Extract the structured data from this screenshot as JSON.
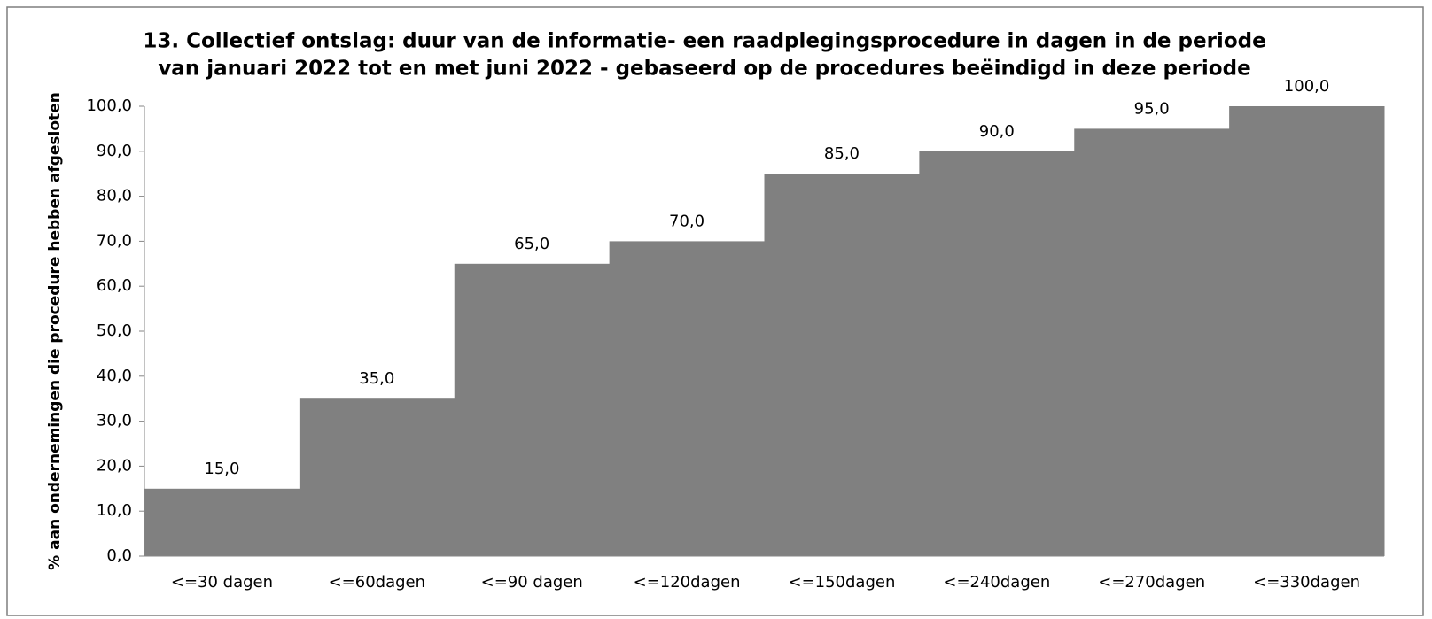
{
  "chart_data": {
    "type": "bar",
    "title": [
      "13. Collectief ontslag: duur van de informatie- een raadplegingsprocedure in dagen in de periode",
      "van januari 2022 tot en met juni 2022 - gebaseerd op de procedures beëindigd in deze periode"
    ],
    "y_label": "% aan ondernemingen die procedure hebben afgesloten",
    "categories": [
      "<=30 dagen",
      "<=60dagen",
      "<=90 dagen",
      "<=120dagen",
      "<=150dagen",
      "<=240dagen",
      "<=270dagen",
      "<=330dagen"
    ],
    "values": [
      15,
      35,
      65,
      70,
      85,
      90,
      95,
      100
    ],
    "value_labels": [
      "15,0",
      "35,0",
      "65,0",
      "70,0",
      "85,0",
      "90,0",
      "95,0",
      "100,0"
    ],
    "color": "#808080",
    "ylim": [
      0,
      100
    ],
    "yticks": [
      {
        "value": 0,
        "label": "0,0"
      },
      {
        "value": 10,
        "label": "10,0"
      },
      {
        "value": 20,
        "label": "20,0"
      },
      {
        "value": 30,
        "label": "30,0"
      },
      {
        "value": 40,
        "label": "40,0"
      },
      {
        "value": 50,
        "label": "50,0"
      },
      {
        "value": 60,
        "label": "60,0"
      },
      {
        "value": 70,
        "label": "70,0"
      },
      {
        "value": 80,
        "label": "80,0"
      },
      {
        "value": 90,
        "label": "90,0"
      },
      {
        "value": 100,
        "label": "100,0"
      }
    ],
    "grid": false
  }
}
